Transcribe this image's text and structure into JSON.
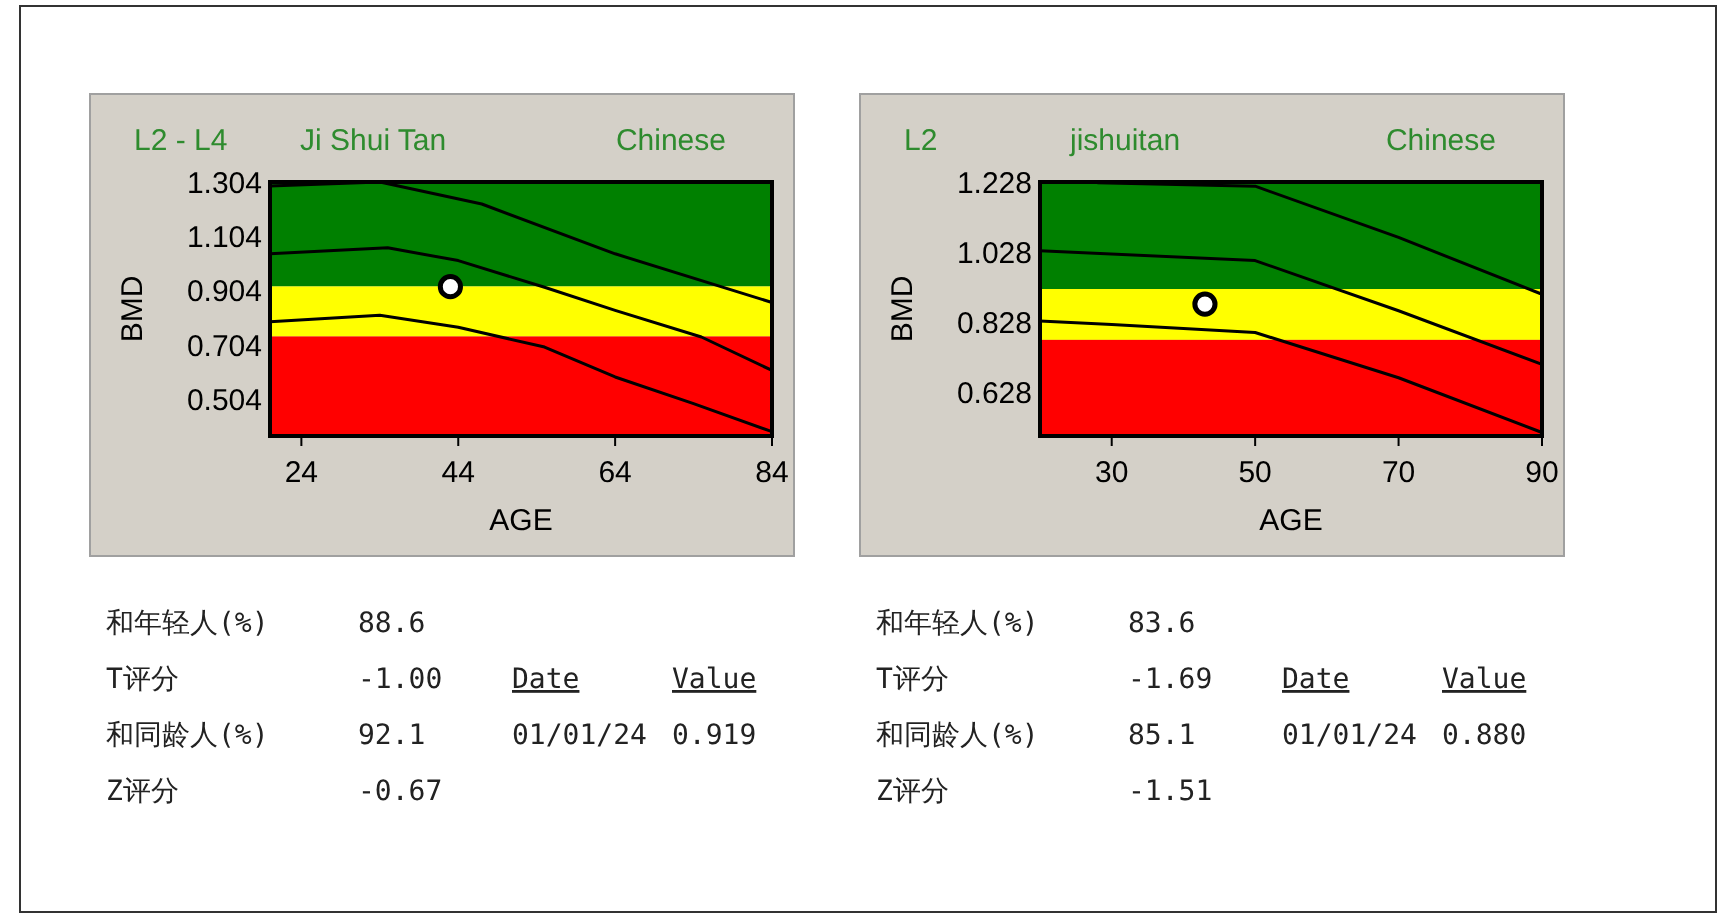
{
  "chart_data": [
    {
      "type": "line",
      "title": "L2 - L4",
      "subtitle": "Ji Shui Tan",
      "xlabel": "AGE",
      "ylabel": "BMD",
      "xlim": [
        20,
        84
      ],
      "ylim": [
        0.37,
        1.304
      ],
      "xticks": [
        24,
        44,
        64,
        84
      ],
      "yticks": [
        0.504,
        0.704,
        0.904,
        1.104,
        1.304
      ],
      "grid": false,
      "bands": [
        {
          "axis": "y",
          "from": 0.92,
          "to": 1.304,
          "color": "#008000"
        },
        {
          "axis": "y",
          "from": 0.736,
          "to": 0.92,
          "color": "#ffff00"
        },
        {
          "axis": "y",
          "from": 0.37,
          "to": 0.736,
          "color": "#ff0000"
        }
      ],
      "series": [
        {
          "color": "#000000",
          "x": [
            20,
            34,
            47,
            64,
            84
          ],
          "values": [
            1.289,
            1.304,
            1.223,
            1.04,
            0.861
          ]
        },
        {
          "color": "#000000",
          "x": [
            20,
            35,
            44,
            55,
            64,
            75,
            84
          ],
          "values": [
            1.04,
            1.062,
            1.015,
            0.917,
            0.832,
            0.734,
            0.611
          ]
        },
        {
          "color": "#000000",
          "x": [
            20,
            34,
            44,
            55,
            64,
            74,
            84
          ],
          "values": [
            0.79,
            0.814,
            0.77,
            0.697,
            0.587,
            0.489,
            0.386
          ]
        },
        {
          "type": "scatter",
          "marker": "circle",
          "color": "#ffffff",
          "x": [
            43
          ],
          "values": [
            0.919
          ]
        }
      ],
      "annotations": [
        "Chinese",
        "和年轻人(%)",
        "88.6",
        "T评分",
        "-1.00",
        "Date",
        "Value",
        "和同龄人(%)",
        "92.1",
        "01/01/24",
        "0.919",
        "Z评分",
        "-0.67"
      ]
    },
    {
      "type": "line",
      "title": "L2",
      "subtitle": "jishuitan",
      "xlabel": "AGE",
      "ylabel": "BMD",
      "xlim": [
        20,
        90
      ],
      "ylim": [
        0.504,
        1.228
      ],
      "xticks": [
        30,
        50,
        70,
        90
      ],
      "yticks": [
        0.628,
        0.828,
        1.028,
        1.228
      ],
      "grid": false,
      "bands": [
        {
          "axis": "y",
          "from": 0.923,
          "to": 1.228,
          "color": "#008000"
        },
        {
          "axis": "y",
          "from": 0.778,
          "to": 0.923,
          "color": "#ffff00"
        },
        {
          "axis": "y",
          "from": 0.504,
          "to": 0.778,
          "color": "#ff0000"
        }
      ],
      "series": [
        {
          "color": "#000000",
          "x": [
            28,
            50,
            70,
            90
          ],
          "values": [
            1.226,
            1.216,
            1.07,
            0.908
          ]
        },
        {
          "color": "#000000",
          "x": [
            20,
            50,
            70,
            90
          ],
          "values": [
            1.032,
            1.004,
            0.861,
            0.708
          ]
        },
        {
          "color": "#000000",
          "x": [
            20,
            30,
            50,
            70,
            90
          ],
          "values": [
            0.832,
            0.822,
            0.799,
            0.67,
            0.514
          ]
        },
        {
          "type": "scatter",
          "marker": "circle",
          "color": "#ffffff",
          "x": [
            43
          ],
          "values": [
            0.88
          ]
        }
      ],
      "annotations": [
        "Chinese",
        "和年轻人(%)",
        "83.6",
        "T评分",
        "-1.69",
        "Date",
        "Value",
        "和同龄人(%)",
        "85.1",
        "01/01/24",
        "0.880",
        "Z评分",
        "-1.51"
      ]
    }
  ]
}
